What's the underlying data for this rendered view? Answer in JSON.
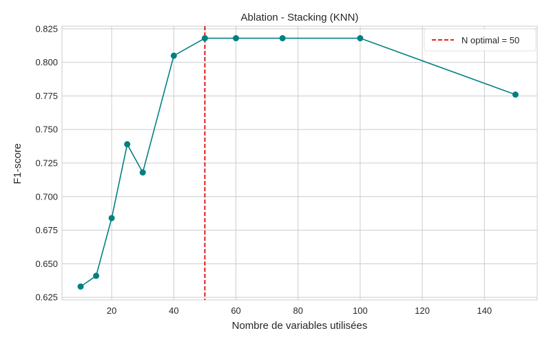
{
  "chart_data": {
    "type": "line",
    "title": "Ablation - Stacking (KNN)",
    "xlabel": "Nombre de variables utilisées",
    "ylabel": "F1-score",
    "xlim": [
      4,
      157
    ],
    "ylim": [
      0.623,
      0.827
    ],
    "xticks": [
      20,
      40,
      60,
      80,
      100,
      120,
      140
    ],
    "yticks": [
      0.625,
      0.65,
      0.675,
      0.7,
      0.725,
      0.75,
      0.775,
      0.8,
      0.825
    ],
    "ytick_labels": [
      "0.625",
      "0.650",
      "0.675",
      "0.700",
      "0.725",
      "0.750",
      "0.775",
      "0.800",
      "0.825"
    ],
    "grid": true,
    "legend_position": "top-right",
    "series": [
      {
        "x": [
          10,
          15,
          20,
          25,
          30,
          40,
          50,
          60,
          75,
          100,
          150
        ],
        "y": [
          0.633,
          0.641,
          0.684,
          0.739,
          0.718,
          0.805,
          0.818,
          0.818,
          0.818,
          0.818,
          0.776
        ],
        "color": "#008080",
        "marker": "circle"
      }
    ],
    "reference_line": {
      "orientation": "vertical",
      "x": 50,
      "label": "N optimal = 50",
      "color": "#e00000",
      "style": "dashed"
    }
  }
}
